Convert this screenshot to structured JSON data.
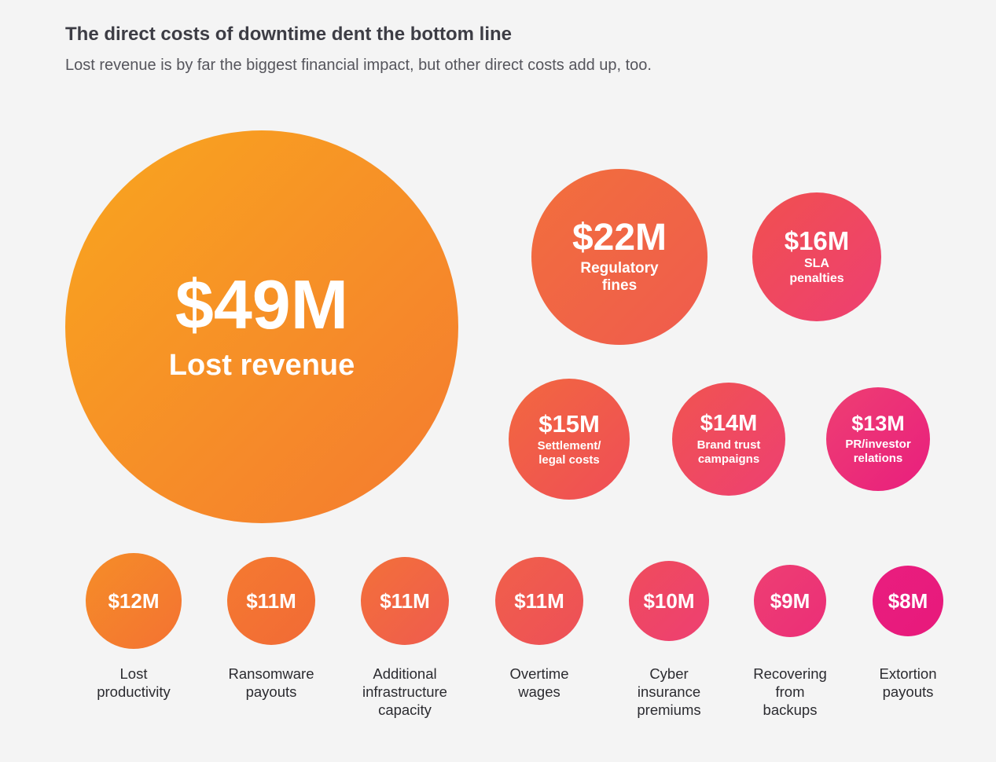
{
  "header": {
    "title": "The direct costs of downtime dent the bottom line",
    "subtitle": "Lost revenue is by far the biggest financial impact, but other direct costs add up, too."
  },
  "chart_data": {
    "type": "bubble",
    "title": "The direct costs of downtime dent the bottom line",
    "subtitle": "Lost revenue is by far the biggest financial impact, but other direct costs add up, too.",
    "unit": "$M",
    "items": [
      {
        "value": 49,
        "display": "$49M",
        "label_lines": [
          "Lost revenue"
        ]
      },
      {
        "value": 22,
        "display": "$22M",
        "label_lines": [
          "Regulatory",
          "fines"
        ]
      },
      {
        "value": 16,
        "display": "$16M",
        "label_lines": [
          "SLA",
          "penalties"
        ]
      },
      {
        "value": 15,
        "display": "$15M",
        "label_lines": [
          "Settlement/",
          "legal costs"
        ]
      },
      {
        "value": 14,
        "display": "$14M",
        "label_lines": [
          "Brand trust",
          "campaigns"
        ]
      },
      {
        "value": 13,
        "display": "$13M",
        "label_lines": [
          "PR/investor",
          "relations"
        ]
      },
      {
        "value": 12,
        "display": "$12M",
        "label_lines": [
          "Lost",
          "productivity"
        ]
      },
      {
        "value": 11,
        "display": "$11M",
        "label_lines": [
          "Ransomware",
          "payouts"
        ]
      },
      {
        "value": 11,
        "display": "$11M",
        "label_lines": [
          "Additional",
          "infrastructure",
          "capacity"
        ]
      },
      {
        "value": 11,
        "display": "$11M",
        "label_lines": [
          "Overtime",
          "wages"
        ]
      },
      {
        "value": 10,
        "display": "$10M",
        "label_lines": [
          "Cyber",
          "insurance",
          "premiums"
        ]
      },
      {
        "value": 9,
        "display": "$9M",
        "label_lines": [
          "Recovering",
          "from",
          "backups"
        ]
      },
      {
        "value": 8,
        "display": "$8M",
        "label_lines": [
          "Extortion",
          "payouts"
        ]
      }
    ],
    "colors": {
      "orange_light": "#f9a61e",
      "orange": "#f47a30",
      "coral": "#ef5b4e",
      "rose": "#ee3f72",
      "magenta": "#e91e7e"
    }
  }
}
